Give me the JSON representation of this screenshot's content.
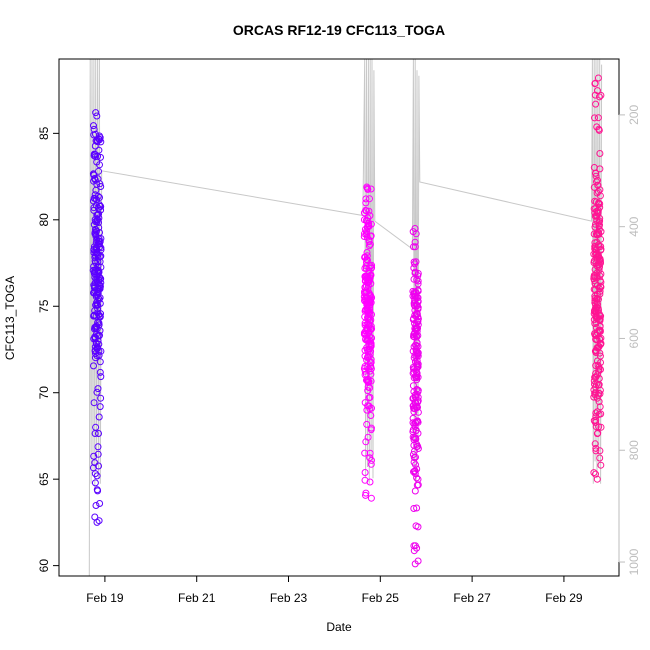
{
  "chart_data": {
    "type": "scatter",
    "title": "ORCAS RF12-19 CFC113_TOGA",
    "xlabel": "Date",
    "ylabel": "CFC113_TOGA",
    "x_ticks": [
      {
        "value": 19,
        "label": "Feb 19"
      },
      {
        "value": 21,
        "label": "Feb 21"
      },
      {
        "value": 23,
        "label": "Feb 23"
      },
      {
        "value": 25,
        "label": "Feb 25"
      },
      {
        "value": 27,
        "label": "Feb 27"
      },
      {
        "value": 29,
        "label": "Feb 29"
      }
    ],
    "xlim": [
      18.0,
      30.2
    ],
    "y_ticks": [
      60,
      65,
      70,
      75,
      80,
      85
    ],
    "ylim": [
      59.4,
      89.3
    ],
    "y2_ticks": [
      200,
      400,
      600,
      800,
      1000
    ],
    "y2lim": [
      1025,
      100
    ],
    "y2_color": "#bdbdbd",
    "grid": false,
    "series": [
      {
        "x_center": 18.83,
        "x_spread": 0.17,
        "y_min": 62.5,
        "y_max": 86.2,
        "y_mode": 77.5,
        "color": "#5a00ff",
        "n": 240
      },
      {
        "x_center": 24.73,
        "x_spread": 0.16,
        "y_min": 63.9,
        "y_max": 81.9,
        "y_mode": 74.5,
        "color": "#ff00ff",
        "n": 230
      },
      {
        "x_center": 25.77,
        "x_spread": 0.12,
        "y_min": 60.1,
        "y_max": 79.5,
        "y_mode": 72.0,
        "color": "#ee00ee",
        "n": 190
      },
      {
        "x_center": 29.73,
        "x_spread": 0.16,
        "y_min": 65.0,
        "y_max": 88.2,
        "y_mode": 76.0,
        "color": "#ff1493",
        "n": 240
      }
    ],
    "altitude_track": [
      [
        18.66,
        1025
      ],
      [
        18.68,
        100
      ],
      [
        18.7,
        860
      ],
      [
        18.72,
        100
      ],
      [
        18.74,
        840
      ],
      [
        18.76,
        100
      ],
      [
        18.78,
        870
      ],
      [
        18.8,
        100
      ],
      [
        18.82,
        830
      ],
      [
        18.84,
        100
      ],
      [
        18.86,
        850
      ],
      [
        18.88,
        100
      ],
      [
        18.9,
        860
      ],
      [
        18.93,
        300
      ],
      [
        24.62,
        380
      ],
      [
        24.66,
        100
      ],
      [
        24.68,
        850
      ],
      [
        24.7,
        100
      ],
      [
        24.72,
        830
      ],
      [
        24.74,
        100
      ],
      [
        24.76,
        860
      ],
      [
        24.78,
        100
      ],
      [
        24.8,
        820
      ],
      [
        24.82,
        100
      ],
      [
        24.84,
        850
      ],
      [
        24.86,
        120
      ],
      [
        24.88,
        390
      ],
      [
        25.7,
        440
      ],
      [
        25.72,
        100
      ],
      [
        25.74,
        830
      ],
      [
        25.76,
        100
      ],
      [
        25.78,
        860
      ],
      [
        25.8,
        120
      ],
      [
        25.82,
        800
      ],
      [
        25.84,
        130
      ],
      [
        25.86,
        320
      ],
      [
        29.6,
        390
      ],
      [
        29.62,
        100
      ],
      [
        29.64,
        860
      ],
      [
        29.66,
        100
      ],
      [
        29.68,
        820
      ],
      [
        29.7,
        100
      ],
      [
        29.72,
        850
      ],
      [
        29.74,
        100
      ],
      [
        29.76,
        830
      ],
      [
        29.78,
        100
      ],
      [
        29.8,
        860
      ],
      [
        29.82,
        110
      ]
    ]
  }
}
